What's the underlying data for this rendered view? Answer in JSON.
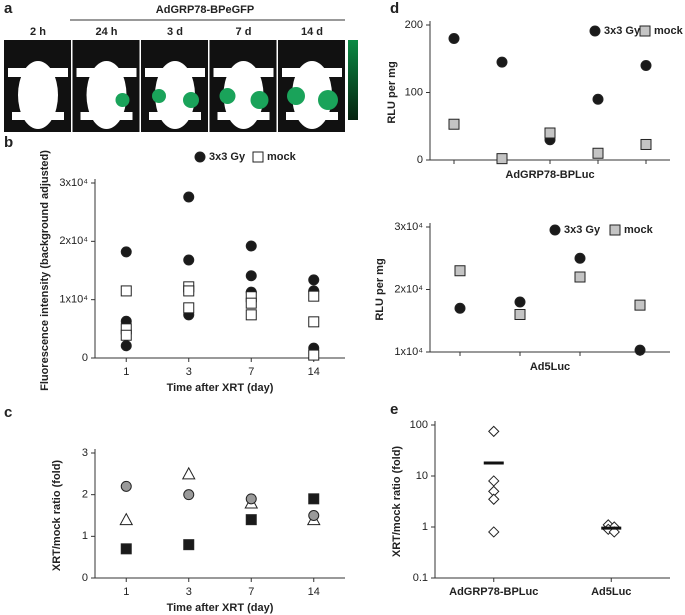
{
  "figure_a": {
    "panel": "a",
    "title": "AdGRP78-BPeGFP",
    "labels": [
      "2 h",
      "24 h",
      "3 d",
      "7 d",
      "14 d"
    ]
  },
  "chart_data": [
    {
      "panel": "b",
      "type": "scatter",
      "categories": [
        "1",
        "3",
        "7",
        "14"
      ],
      "x_label": "Time after XRT (day)",
      "y_label": "Fluorescence intensity (background adjusted)",
      "ylim": [
        0,
        30000
      ],
      "yticks": [
        0,
        {
          "value": 10000,
          "label": "1x10⁴"
        },
        {
          "value": 20000,
          "label": "2x10⁴"
        },
        {
          "value": 30000,
          "label": "3x10⁴"
        }
      ],
      "series": [
        {
          "name": "3x3 Gy",
          "color": "#1a1a1a",
          "marker": "circle",
          "values": [
            [
              18200,
              6300,
              2100
            ],
            [
              27600,
              16800,
              7400
            ],
            [
              19200,
              14100,
              11300
            ],
            [
              13400,
              11500,
              1700
            ]
          ]
        },
        {
          "name": "mock",
          "color": "#ffffff",
          "marker": "square",
          "values": [
            [
              11500,
              5000,
              3900
            ],
            [
              12200,
              11500,
              8600
            ],
            [
              10500,
              9400,
              7400
            ],
            [
              10600,
              6200,
              500
            ]
          ]
        }
      ]
    },
    {
      "panel": "c",
      "type": "scatter",
      "categories": [
        "1",
        "3",
        "7",
        "14"
      ],
      "x_label": "Time after XRT (day)",
      "y_label": "XRT/mock ratio (fold)",
      "ylim": [
        0,
        3
      ],
      "yticks": [
        0,
        1,
        2,
        3
      ],
      "series": [
        {
          "color": "#1a1a1a",
          "marker": "square",
          "values": [
            0.7,
            0.8,
            1.4,
            1.9
          ]
        },
        {
          "color": "#ffffff",
          "marker": "triangle",
          "values": [
            1.4,
            2.5,
            1.8,
            1.4
          ]
        },
        {
          "color": "#9a9a9a",
          "marker": "circle",
          "values": [
            2.2,
            2.0,
            1.9,
            1.5
          ]
        }
      ]
    },
    {
      "panel": "d",
      "type": "scatter",
      "categories": [
        null,
        null,
        null,
        null,
        null
      ],
      "x_label": "AdGRP78-BPLuc",
      "y_label": "RLU per mg",
      "ylim": [
        0,
        200
      ],
      "yticks": [
        0,
        100,
        200
      ],
      "series": [
        {
          "name": "3x3 Gy",
          "color": "#1a1a1a",
          "marker": "circle",
          "values": [
            180,
            145,
            30,
            90,
            140
          ]
        },
        {
          "name": "mock",
          "color": "#c4c4c4",
          "marker": "square",
          "values": [
            53,
            2,
            40,
            10,
            23
          ]
        }
      ]
    },
    {
      "type": "scatter",
      "categories": [
        null,
        null,
        null,
        null
      ],
      "x_label": "Ad5Luc",
      "y_label": "RLU per mg",
      "ylim": [
        10000,
        30000
      ],
      "yticks": [
        {
          "value": 10000,
          "label": "1x10⁴"
        },
        {
          "value": 20000,
          "label": "2x10⁴"
        },
        {
          "value": 30000,
          "label": "3x10⁴"
        }
      ],
      "series": [
        {
          "name": "3x3 Gy",
          "color": "#1a1a1a",
          "marker": "circle",
          "values": [
            17000,
            18000,
            25000,
            10300
          ]
        },
        {
          "name": "mock",
          "color": "#c4c4c4",
          "marker": "square",
          "values": [
            23000,
            16000,
            22000,
            17500
          ]
        }
      ]
    },
    {
      "panel": "e",
      "type": "dot",
      "categories": [
        "AdGRP78-BPLuc",
        "Ad5Luc"
      ],
      "y_label": "XRT/mock ratio (fold)",
      "log_scale": true,
      "ylim": [
        0.1,
        100
      ],
      "yticks": [
        0.1,
        1,
        10,
        100
      ],
      "color": "#ffffff",
      "marker": "diamond",
      "groups": [
        {
          "values": [
            75,
            8,
            5,
            3.5,
            0.8
          ],
          "mean": 18
        },
        {
          "values": [
            1.1,
            1.0,
            0.9,
            0.8
          ],
          "mean": 0.95
        }
      ]
    }
  ]
}
